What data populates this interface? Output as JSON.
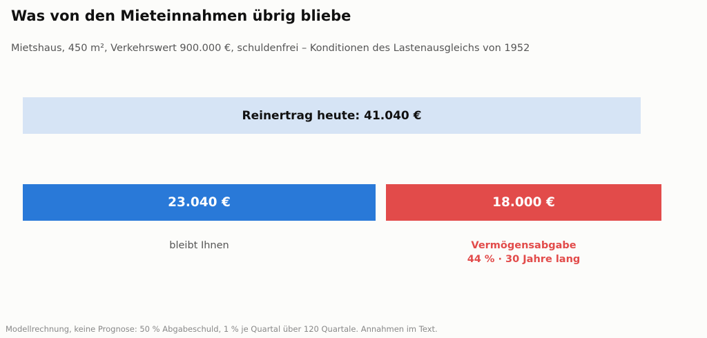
{
  "header": {
    "title": "Was von den Mieteinnahmen übrig bliebe",
    "subtitle": "Mietshaus, 450 m², Verkehrswert 900.000 €, schuldenfrei – Konditionen des Lastenausgleichs von 1952"
  },
  "chart_data": {
    "type": "bar",
    "title": "Was von den Mieteinnahmen übrig bliebe",
    "subtitle": "Mietshaus, 450 m², Verkehrswert 900.000 €, schuldenfrei – Konditionen des Lastenausgleichs von 1952",
    "unit": "€",
    "total": {
      "value": 41040,
      "label": "Reinertrag heute: 41.040 €"
    },
    "segments": [
      {
        "value": 23040,
        "value_label": "23.040 €",
        "caption_lines": [
          "bleibt Ihnen"
        ]
      },
      {
        "value": 18000,
        "value_label": "18.000 €",
        "caption_lines": [
          "Vermögensabgabe",
          "44 % · 30 Jahre lang"
        ]
      }
    ],
    "colors": {
      "total": "#d6e4f5",
      "keep": "#2979d8",
      "levy": "#e24b4a"
    }
  },
  "footnote": "Modellrechnung, keine Prognose: 50 % Abgabeschuld, 1 % je Quartal über 120 Quartale. Annahmen im Text."
}
